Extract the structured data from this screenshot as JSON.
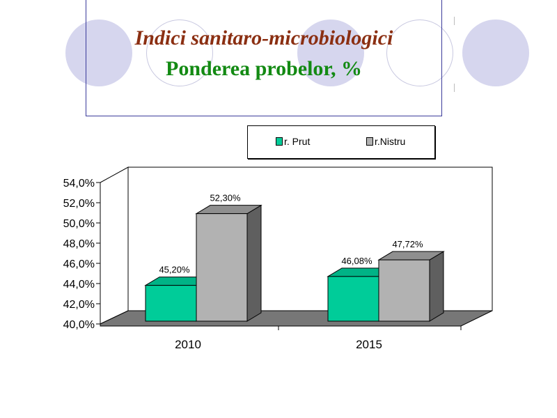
{
  "title": "Indici sanitaro-microbiologici",
  "subtitle": "Ponderea probelor, %",
  "colors": {
    "prut": "#00cc99",
    "nistru": "#b2b2b2",
    "title": "#8b2f12",
    "subtitle": "#138a13"
  },
  "chart_data": {
    "type": "bar",
    "title": "Indici sanitaro-microbiologici",
    "subtitle": "Ponderea probelor, %",
    "categories": [
      "2010",
      "2015"
    ],
    "series": [
      {
        "name": "r. Prut",
        "values": [
          45.2,
          46.08
        ],
        "labels": [
          "45,20%",
          "46,08%"
        ]
      },
      {
        "name": "r.Nistru",
        "values": [
          52.3,
          47.72
        ],
        "labels": [
          "52,30%",
          "47,72%"
        ]
      }
    ],
    "ylim": [
      40,
      54
    ],
    "yticks": [
      "40,0%",
      "42,0%",
      "44,0%",
      "46,0%",
      "48,0%",
      "50,0%",
      "52,0%",
      "54,0%"
    ],
    "legend": "top",
    "xlabel": "",
    "ylabel": ""
  }
}
